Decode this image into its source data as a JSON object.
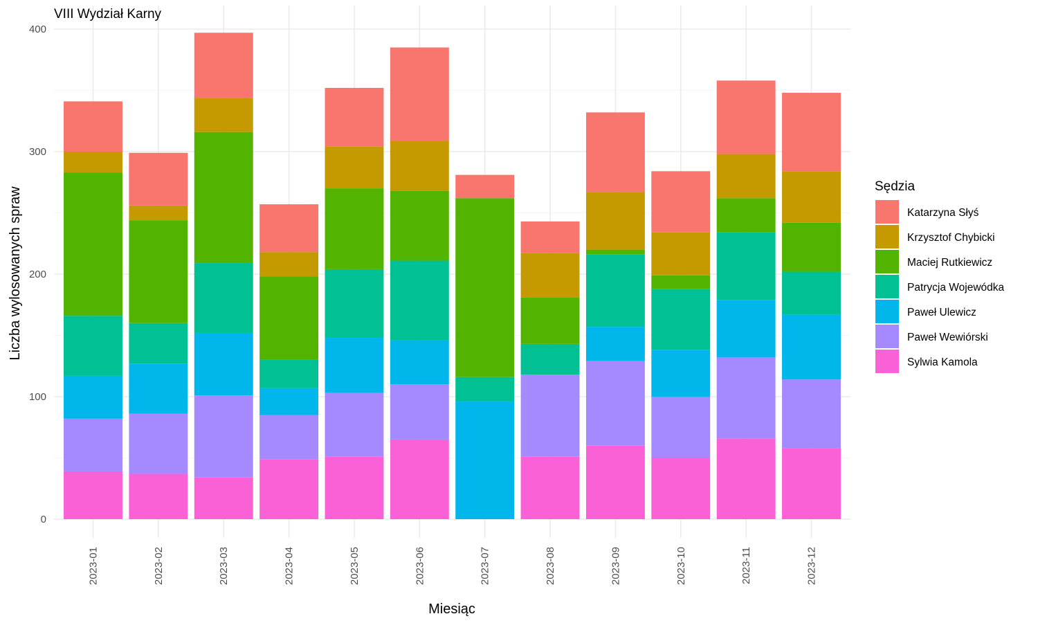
{
  "chart_data": {
    "type": "bar",
    "stacked": true,
    "title": "VIII Wydział Karny",
    "xlabel": "Miesiąc",
    "ylabel": "Liczba wylosowanych spraw",
    "ylim": [
      0,
      400
    ],
    "y_ticks": [
      0,
      100,
      200,
      300,
      400
    ],
    "grid": true,
    "legend": {
      "title": "Sędzia",
      "position": "right"
    },
    "categories": [
      "2023-01",
      "2023-02",
      "2023-03",
      "2023-04",
      "2023-05",
      "2023-06",
      "2023-07",
      "2023-08",
      "2023-09",
      "2023-10",
      "2023-11",
      "2023-12"
    ],
    "series": [
      {
        "name": "Katarzyna Słyś",
        "color": "#F8766D",
        "values": [
          41,
          43,
          53,
          39,
          48,
          76,
          19,
          26,
          65,
          50,
          60,
          64
        ]
      },
      {
        "name": "Krzysztof Chybicki",
        "color": "#C49A00",
        "values": [
          17,
          12,
          28,
          20,
          34,
          41,
          0,
          36,
          47,
          35,
          36,
          42
        ]
      },
      {
        "name": "Maciej Rutkiewicz",
        "color": "#53B400",
        "values": [
          117,
          84,
          107,
          68,
          66,
          57,
          146,
          38,
          4,
          11,
          28,
          40
        ]
      },
      {
        "name": "Patrycja Wojewódka",
        "color": "#00C094",
        "values": [
          49,
          33,
          57,
          23,
          56,
          65,
          20,
          25,
          59,
          50,
          55,
          35
        ]
      },
      {
        "name": "Paweł Ulewicz",
        "color": "#00B6EB",
        "values": [
          35,
          41,
          51,
          22,
          45,
          36,
          96,
          0,
          28,
          38,
          47,
          53
        ]
      },
      {
        "name": "Paweł Wewiórski",
        "color": "#A58AFF",
        "values": [
          43,
          49,
          67,
          36,
          52,
          45,
          0,
          67,
          69,
          50,
          66,
          56
        ]
      },
      {
        "name": "Sylwia Kamola",
        "color": "#FB61D7",
        "values": [
          39,
          37,
          34,
          49,
          51,
          65,
          0,
          51,
          60,
          50,
          66,
          58
        ]
      }
    ]
  }
}
